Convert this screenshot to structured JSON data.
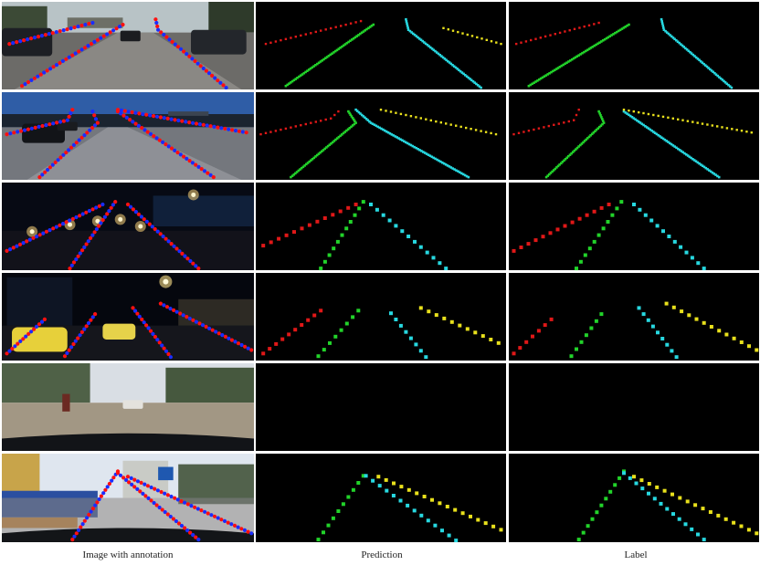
{
  "captions": {
    "col1": "Image with annotation",
    "col2": "Prediction",
    "col3": "Label"
  },
  "colors": {
    "lane1": "#e01818",
    "lane2": "#22d32a",
    "lane3": "#27d8e0",
    "lane4": "#e8e01c",
    "annot_red": "#ff1010",
    "annot_blue": "#1a2dff",
    "panel_bg": "#000000"
  },
  "rows": [
    {
      "scene": "highway-day",
      "prediction": [
        {
          "color": "lane1",
          "pts": [
            [
              0.04,
              0.48
            ],
            [
              0.42,
              0.22
            ]
          ],
          "style": "dotted"
        },
        {
          "color": "lane2",
          "pts": [
            [
              0.12,
              0.96
            ],
            [
              0.47,
              0.26
            ]
          ],
          "style": "solid"
        },
        {
          "color": "lane3",
          "pts": [
            [
              0.6,
              0.2
            ],
            [
              0.61,
              0.32
            ],
            [
              0.9,
              0.98
            ]
          ],
          "style": "solid"
        },
        {
          "color": "lane4",
          "pts": [
            [
              0.75,
              0.3
            ],
            [
              0.98,
              0.48
            ]
          ],
          "style": "dotted"
        }
      ],
      "label": [
        {
          "color": "lane1",
          "pts": [
            [
              0.03,
              0.48
            ],
            [
              0.36,
              0.24
            ]
          ],
          "style": "dotted"
        },
        {
          "color": "lane2",
          "pts": [
            [
              0.08,
              0.96
            ],
            [
              0.48,
              0.26
            ]
          ],
          "style": "solid"
        },
        {
          "color": "lane3",
          "pts": [
            [
              0.61,
              0.2
            ],
            [
              0.62,
              0.32
            ],
            [
              0.89,
              0.98
            ]
          ],
          "style": "solid"
        }
      ]
    },
    {
      "scene": "highway-evening",
      "prediction": [
        {
          "color": "lane1",
          "pts": [
            [
              0.02,
              0.48
            ],
            [
              0.3,
              0.3
            ],
            [
              0.33,
              0.22
            ]
          ],
          "style": "dotted"
        },
        {
          "color": "lane2",
          "pts": [
            [
              0.14,
              0.97
            ],
            [
              0.4,
              0.35
            ],
            [
              0.37,
              0.22
            ]
          ],
          "style": "solid"
        },
        {
          "color": "lane3",
          "pts": [
            [
              0.4,
              0.2
            ],
            [
              0.46,
              0.35
            ],
            [
              0.85,
              0.97
            ]
          ],
          "style": "solid"
        },
        {
          "color": "lane4",
          "pts": [
            [
              0.5,
              0.2
            ],
            [
              0.96,
              0.48
            ]
          ],
          "style": "dotted"
        }
      ],
      "label": [
        {
          "color": "lane1",
          "pts": [
            [
              0.02,
              0.48
            ],
            [
              0.26,
              0.32
            ],
            [
              0.28,
              0.2
            ]
          ],
          "style": "dotted"
        },
        {
          "color": "lane2",
          "pts": [
            [
              0.15,
              0.97
            ],
            [
              0.38,
              0.35
            ],
            [
              0.36,
              0.22
            ]
          ],
          "style": "solid"
        },
        {
          "color": "lane3",
          "pts": [
            [
              0.46,
              0.22
            ],
            [
              0.84,
              0.97
            ]
          ],
          "style": "solid"
        },
        {
          "color": "lane4",
          "pts": [
            [
              0.46,
              0.2
            ],
            [
              0.97,
              0.46
            ]
          ],
          "style": "dotted"
        }
      ]
    },
    {
      "scene": "city-night",
      "prediction": [
        {
          "color": "lane1",
          "pts": [
            [
              0.03,
              0.72
            ],
            [
              0.4,
              0.25
            ]
          ],
          "style": "dashed"
        },
        {
          "color": "lane2",
          "pts": [
            [
              0.26,
              0.98
            ],
            [
              0.43,
              0.22
            ]
          ],
          "style": "dashed"
        },
        {
          "color": "lane3",
          "pts": [
            [
              0.46,
              0.25
            ],
            [
              0.76,
              0.98
            ]
          ],
          "style": "dashed"
        }
      ],
      "label": [
        {
          "color": "lane1",
          "pts": [
            [
              0.02,
              0.78
            ],
            [
              0.4,
              0.25
            ]
          ],
          "style": "dashed"
        },
        {
          "color": "lane2",
          "pts": [
            [
              0.27,
              0.98
            ],
            [
              0.45,
              0.22
            ]
          ],
          "style": "dashed"
        },
        {
          "color": "lane3",
          "pts": [
            [
              0.5,
              0.25
            ],
            [
              0.78,
              0.98
            ]
          ],
          "style": "dashed"
        }
      ]
    },
    {
      "scene": "taxi-night",
      "prediction": [
        {
          "color": "lane1",
          "pts": [
            [
              0.03,
              0.92
            ],
            [
              0.26,
              0.43
            ]
          ],
          "style": "dashed"
        },
        {
          "color": "lane2",
          "pts": [
            [
              0.25,
              0.95
            ],
            [
              0.41,
              0.43
            ]
          ],
          "style": "dashed"
        },
        {
          "color": "lane3",
          "pts": [
            [
              0.54,
              0.46
            ],
            [
              0.68,
              0.96
            ]
          ],
          "style": "dashed"
        },
        {
          "color": "lane4",
          "pts": [
            [
              0.66,
              0.4
            ],
            [
              0.97,
              0.8
            ]
          ],
          "style": "dashed"
        }
      ],
      "label": [
        {
          "color": "lane1",
          "pts": [
            [
              0.02,
              0.92
            ],
            [
              0.17,
              0.53
            ]
          ],
          "style": "dashed"
        },
        {
          "color": "lane2",
          "pts": [
            [
              0.25,
              0.95
            ],
            [
              0.37,
              0.47
            ]
          ],
          "style": "dashed"
        },
        {
          "color": "lane3",
          "pts": [
            [
              0.52,
              0.4
            ],
            [
              0.67,
              0.96
            ]
          ],
          "style": "dashed"
        },
        {
          "color": "lane4",
          "pts": [
            [
              0.63,
              0.35
            ],
            [
              0.99,
              0.88
            ]
          ],
          "style": "dashed"
        }
      ]
    },
    {
      "scene": "dirt-road",
      "prediction": [],
      "label": []
    },
    {
      "scene": "urban-street",
      "prediction": [
        {
          "color": "lane2",
          "pts": [
            [
              0.25,
              0.97
            ],
            [
              0.43,
              0.25
            ]
          ],
          "style": "dashed"
        },
        {
          "color": "lane3",
          "pts": [
            [
              0.44,
              0.25
            ],
            [
              0.8,
              0.98
            ]
          ],
          "style": "dashed"
        },
        {
          "color": "lane4",
          "pts": [
            [
              0.49,
              0.26
            ],
            [
              0.98,
              0.86
            ]
          ],
          "style": "dashed"
        }
      ],
      "label": [
        {
          "color": "lane2",
          "pts": [
            [
              0.28,
              0.97
            ],
            [
              0.46,
              0.2
            ]
          ],
          "style": "dashed"
        },
        {
          "color": "lane3",
          "pts": [
            [
              0.46,
              0.22
            ],
            [
              0.78,
              0.97
            ]
          ],
          "style": "dashed"
        },
        {
          "color": "lane4",
          "pts": [
            [
              0.5,
              0.26
            ],
            [
              0.99,
              0.9
            ]
          ],
          "style": "dashed"
        }
      ]
    }
  ]
}
